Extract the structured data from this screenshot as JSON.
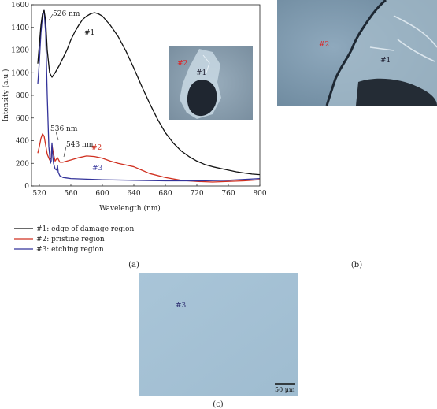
{
  "chart_data": {
    "type": "line",
    "xlabel": "Wavelength (nm)",
    "ylabel": "Intensity (a.u.)",
    "xlim": [
      510,
      800
    ],
    "ylim": [
      0,
      1600
    ],
    "xticks": [
      "520",
      "560",
      "600",
      "640",
      "680",
      "720",
      "760",
      "800"
    ],
    "yticks": [
      "0",
      "200",
      "400",
      "600",
      "800",
      "1000",
      "1200",
      "1400",
      "1600"
    ],
    "series": [
      {
        "name": "#1: edge of damage region",
        "label": "#1",
        "color": "#111111",
        "x": [
          518,
          520,
          522,
          524,
          526,
          528,
          530,
          533,
          536,
          540,
          545,
          550,
          555,
          560,
          565,
          570,
          575,
          580,
          585,
          590,
          595,
          600,
          605,
          610,
          620,
          630,
          640,
          650,
          660,
          670,
          680,
          690,
          700,
          710,
          720,
          730,
          740,
          750,
          760,
          770,
          780,
          790,
          800
        ],
        "y": [
          1080,
          1250,
          1420,
          1520,
          1550,
          1460,
          1200,
          1000,
          960,
          1000,
          1060,
          1130,
          1200,
          1290,
          1360,
          1420,
          1470,
          1500,
          1520,
          1530,
          1520,
          1500,
          1460,
          1420,
          1320,
          1190,
          1040,
          880,
          730,
          590,
          470,
          380,
          310,
          260,
          220,
          190,
          170,
          155,
          140,
          125,
          115,
          105,
          100
        ]
      },
      {
        "name": "#2: pristine region",
        "label": "#2",
        "color": "#d03020",
        "x": [
          518,
          520,
          522,
          524,
          526,
          528,
          530,
          533,
          535,
          536,
          538,
          540,
          543,
          546,
          550,
          560,
          570,
          580,
          590,
          600,
          610,
          620,
          630,
          640,
          650,
          660,
          680,
          700,
          720,
          740,
          760,
          780,
          800
        ],
        "y": [
          290,
          350,
          420,
          460,
          440,
          360,
          280,
          230,
          250,
          360,
          280,
          220,
          250,
          210,
          210,
          230,
          250,
          265,
          260,
          245,
          220,
          200,
          185,
          170,
          140,
          110,
          75,
          50,
          40,
          35,
          40,
          45,
          55
        ]
      },
      {
        "name": "#3: etching region",
        "label": "#3",
        "color": "#33339a",
        "x": [
          518,
          520,
          522,
          524,
          526,
          528,
          530,
          532,
          534,
          535,
          536,
          537,
          538,
          540,
          542,
          543,
          544,
          546,
          550,
          555,
          560,
          580,
          600,
          640,
          680,
          720,
          760,
          800
        ],
        "y": [
          900,
          1100,
          1350,
          1500,
          1550,
          1350,
          800,
          350,
          200,
          220,
          380,
          260,
          200,
          150,
          140,
          180,
          120,
          90,
          75,
          70,
          65,
          60,
          55,
          50,
          45,
          45,
          50,
          65
        ]
      }
    ],
    "annotations": [
      "526 nm",
      "536 nm",
      "543 nm"
    ],
    "grid": false,
    "legend_position": "below plot"
  },
  "panels": {
    "a": "(a)",
    "b": "(b)",
    "c": "(c)"
  },
  "insets": {
    "inset_a": {
      "marks": [
        "#2",
        "#1"
      ]
    },
    "panel_b": {
      "marks": [
        "#2",
        "#1"
      ]
    },
    "panel_c": {
      "marks": [
        "#3"
      ],
      "scale_bar": "50 μm"
    }
  }
}
